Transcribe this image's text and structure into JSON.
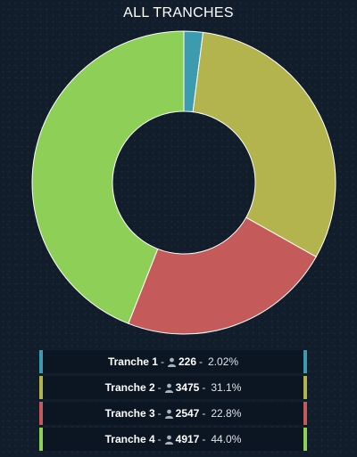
{
  "header": {
    "title": "ALL TRANCHES"
  },
  "icons": {
    "count_icon": "person-icon"
  },
  "colors": {
    "background": "#111d2b",
    "slices": [
      "#3d9bb0",
      "#b3b44e",
      "#c45a5a",
      "#8ecf58"
    ]
  },
  "chart_data": {
    "type": "pie",
    "donut": true,
    "title": "ALL TRANCHES",
    "categories": [
      "Tranche 1",
      "Tranche 2",
      "Tranche 3",
      "Tranche 4"
    ],
    "values": [
      226,
      3475,
      2547,
      4917
    ],
    "percentages": [
      "2.02%",
      "31.1%",
      "22.8%",
      "44.0%"
    ],
    "legend_position": "bottom"
  },
  "legend": [
    {
      "name": "Tranche 1",
      "count": "226",
      "pct": "2.02%"
    },
    {
      "name": "Tranche 2",
      "count": "3475",
      "pct": "31.1%"
    },
    {
      "name": "Tranche 3",
      "count": "2547",
      "pct": "22.8%"
    },
    {
      "name": "Tranche 4",
      "count": "4917",
      "pct": "44.0%"
    }
  ]
}
